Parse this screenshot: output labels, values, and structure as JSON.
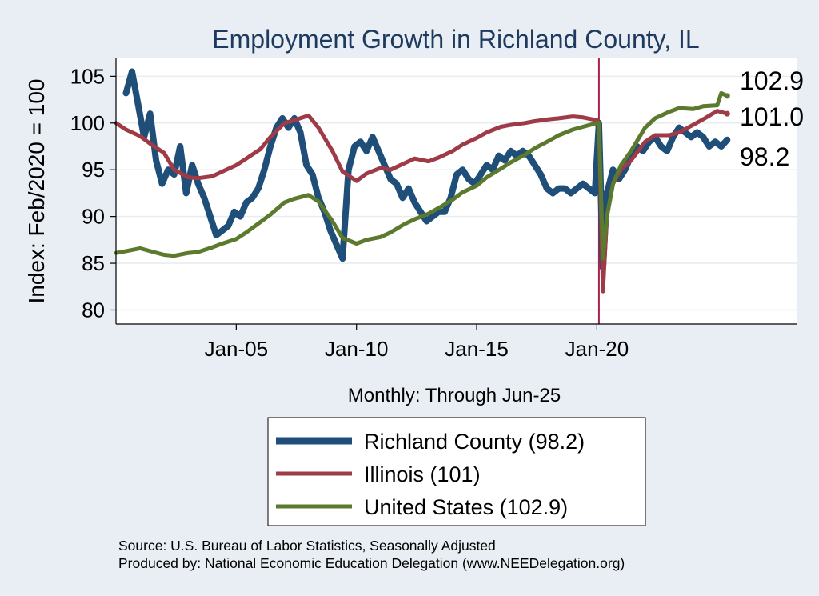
{
  "chart_data": {
    "type": "line",
    "title": "Employment Growth in Richland  County, IL",
    "ylabel": "Index: Feb/2020 = 100",
    "xlabel": "Monthly: Through Jun-25",
    "xlim": [
      "2000-01",
      "2028-05"
    ],
    "ylim": [
      78.5,
      107
    ],
    "x_ticks": [
      {
        "x": "2005-01",
        "label": "Jan-05"
      },
      {
        "x": "2010-01",
        "label": "Jan-10"
      },
      {
        "x": "2015-01",
        "label": "Jan-15"
      },
      {
        "x": "2020-01",
        "label": "Jan-20"
      }
    ],
    "y_ticks": [
      80,
      85,
      90,
      95,
      100,
      105
    ],
    "y_tick_labels": [
      "80",
      "85",
      "90",
      "95",
      "100",
      "105"
    ],
    "reference_line": {
      "x": "2020-02",
      "color": "#a8234a"
    },
    "grid": true,
    "legend_position": "bottom",
    "series": [
      {
        "name": "Richland  County (98.2)",
        "legend_label": "Richland  County (98.2)",
        "end_label": "98.2",
        "color": "#1f4e79",
        "width": 8,
        "x": [
          "2000-06",
          "2000-09",
          "2000-12",
          "2001-03",
          "2001-06",
          "2001-09",
          "2001-12",
          "2002-03",
          "2002-06",
          "2002-09",
          "2002-12",
          "2003-03",
          "2003-06",
          "2003-09",
          "2003-12",
          "2004-03",
          "2004-06",
          "2004-09",
          "2004-12",
          "2005-03",
          "2005-06",
          "2005-09",
          "2005-12",
          "2006-03",
          "2006-06",
          "2006-09",
          "2006-12",
          "2007-03",
          "2007-06",
          "2007-09",
          "2007-12",
          "2008-03",
          "2008-06",
          "2008-09",
          "2008-12",
          "2009-03",
          "2009-06",
          "2009-09",
          "2009-12",
          "2010-03",
          "2010-06",
          "2010-09",
          "2010-12",
          "2011-03",
          "2011-06",
          "2011-09",
          "2011-12",
          "2012-03",
          "2012-06",
          "2012-09",
          "2012-12",
          "2013-03",
          "2013-06",
          "2013-09",
          "2013-12",
          "2014-03",
          "2014-06",
          "2014-09",
          "2014-12",
          "2015-03",
          "2015-06",
          "2015-09",
          "2015-12",
          "2016-03",
          "2016-06",
          "2016-09",
          "2016-12",
          "2017-03",
          "2017-06",
          "2017-09",
          "2017-12",
          "2018-03",
          "2018-06",
          "2018-09",
          "2018-12",
          "2019-03",
          "2019-06",
          "2019-09",
          "2019-12",
          "2020-02",
          "2020-04",
          "2020-06",
          "2020-09",
          "2020-12",
          "2021-03",
          "2021-06",
          "2021-09",
          "2021-12",
          "2022-03",
          "2022-06",
          "2022-09",
          "2022-12",
          "2023-03",
          "2023-06",
          "2023-09",
          "2023-12",
          "2024-03",
          "2024-06",
          "2024-09",
          "2024-12",
          "2025-03",
          "2025-06"
        ],
        "values": [
          103.2,
          105.5,
          102.0,
          98.5,
          101.0,
          96.0,
          93.5,
          95.0,
          94.5,
          97.5,
          92.5,
          95.5,
          93.5,
          92.0,
          90.0,
          88.0,
          88.5,
          89.0,
          90.5,
          90.0,
          91.5,
          92.0,
          93.0,
          95.0,
          97.5,
          99.5,
          100.5,
          99.5,
          100.5,
          99.0,
          95.5,
          94.5,
          92.0,
          90.5,
          88.5,
          87.0,
          85.5,
          95.0,
          97.5,
          98.0,
          97.0,
          98.5,
          97.0,
          95.5,
          94.0,
          93.5,
          92.0,
          93.0,
          91.5,
          90.5,
          89.5,
          90.0,
          90.5,
          90.5,
          92.0,
          94.5,
          95.0,
          94.0,
          93.5,
          94.5,
          95.5,
          95.0,
          96.5,
          96.0,
          97.0,
          96.5,
          97.0,
          96.5,
          95.5,
          94.5,
          93.0,
          92.5,
          93.0,
          93.0,
          92.5,
          93.0,
          93.5,
          93.0,
          92.5,
          100.0,
          84.5,
          92.5,
          95.0,
          94.0,
          95.0,
          96.5,
          97.5,
          97.0,
          98.0,
          98.5,
          97.5,
          97.0,
          98.5,
          99.5,
          99.0,
          98.5,
          99.0,
          98.5,
          97.5,
          98.0,
          97.5,
          98.2
        ]
      },
      {
        "name": "Illinois (101)",
        "legend_label": "Illinois (101)",
        "end_label": "101.0",
        "color": "#9e3b46",
        "width": 5,
        "x": [
          "2000-01",
          "2000-06",
          "2001-01",
          "2001-06",
          "2002-01",
          "2002-06",
          "2003-01",
          "2003-06",
          "2004-01",
          "2004-06",
          "2005-01",
          "2005-06",
          "2006-01",
          "2006-06",
          "2007-01",
          "2007-06",
          "2008-01",
          "2008-06",
          "2009-01",
          "2009-06",
          "2010-01",
          "2010-06",
          "2011-01",
          "2011-06",
          "2012-01",
          "2012-06",
          "2013-01",
          "2013-06",
          "2014-01",
          "2014-06",
          "2015-01",
          "2015-06",
          "2016-01",
          "2016-06",
          "2017-01",
          "2017-06",
          "2018-01",
          "2018-06",
          "2019-01",
          "2019-06",
          "2020-01",
          "2020-02",
          "2020-04",
          "2020-06",
          "2020-09",
          "2021-01",
          "2021-06",
          "2022-01",
          "2022-06",
          "2023-01",
          "2023-06",
          "2024-01",
          "2024-06",
          "2025-01",
          "2025-06"
        ],
        "values": [
          100.0,
          99.3,
          98.6,
          97.8,
          96.8,
          95.0,
          94.2,
          94.1,
          94.3,
          94.8,
          95.5,
          96.2,
          97.2,
          98.5,
          100.0,
          100.3,
          100.8,
          99.5,
          97.0,
          94.8,
          93.8,
          94.6,
          95.2,
          95.0,
          95.7,
          96.2,
          95.9,
          96.3,
          97.0,
          97.7,
          98.4,
          99.0,
          99.6,
          99.8,
          100.0,
          100.2,
          100.4,
          100.5,
          100.7,
          100.6,
          100.3,
          100.0,
          82.0,
          90.0,
          93.5,
          95.0,
          96.0,
          98.0,
          98.7,
          98.7,
          99.0,
          99.8,
          100.4,
          101.3,
          101.0
        ]
      },
      {
        "name": "United States (102.9)",
        "legend_label": "United States (102.9)",
        "end_label": "102.9",
        "color": "#5b7a2e",
        "width": 5,
        "x": [
          "2000-01",
          "2000-06",
          "2001-01",
          "2001-06",
          "2002-01",
          "2002-06",
          "2003-01",
          "2003-06",
          "2004-01",
          "2004-06",
          "2005-01",
          "2005-06",
          "2006-01",
          "2006-06",
          "2007-01",
          "2007-06",
          "2008-01",
          "2008-06",
          "2009-01",
          "2009-06",
          "2010-01",
          "2010-06",
          "2011-01",
          "2011-06",
          "2012-01",
          "2012-06",
          "2013-01",
          "2013-06",
          "2014-01",
          "2014-06",
          "2015-01",
          "2015-06",
          "2016-01",
          "2016-06",
          "2017-01",
          "2017-06",
          "2018-01",
          "2018-06",
          "2019-01",
          "2019-06",
          "2020-01",
          "2020-02",
          "2020-04",
          "2020-06",
          "2020-09",
          "2021-01",
          "2021-06",
          "2022-01",
          "2022-06",
          "2023-01",
          "2023-06",
          "2024-01",
          "2024-06",
          "2025-01",
          "2025-03",
          "2025-06"
        ],
        "values": [
          86.1,
          86.3,
          86.6,
          86.3,
          85.9,
          85.8,
          86.1,
          86.2,
          86.7,
          87.1,
          87.6,
          88.3,
          89.4,
          90.2,
          91.5,
          91.9,
          92.3,
          91.6,
          89.5,
          87.7,
          87.1,
          87.5,
          87.8,
          88.3,
          89.2,
          89.7,
          90.3,
          90.9,
          91.8,
          92.6,
          93.3,
          94.2,
          95.1,
          95.8,
          96.6,
          97.3,
          98.1,
          98.7,
          99.3,
          99.6,
          100.0,
          100.0,
          85.5,
          90.0,
          93.5,
          95.5,
          97.0,
          99.5,
          100.5,
          101.2,
          101.6,
          101.5,
          101.8,
          101.9,
          103.2,
          102.9
        ]
      }
    ]
  },
  "annotations": {
    "end_labels": [
      "102.9",
      "101.0",
      "98.2"
    ]
  },
  "source": {
    "line1": "Source: U.S. Bureau of Labor Statistics, Seasonally Adjusted",
    "line2": "Produced by: National Economic Education Delegation (www.NEEDelegation.org)"
  },
  "colors": {
    "background": "#e8eef4",
    "plot_background": "#ffffff",
    "grid": "#e6ecef",
    "title": "#1f3a5f",
    "reference_line": "#a8234a"
  }
}
